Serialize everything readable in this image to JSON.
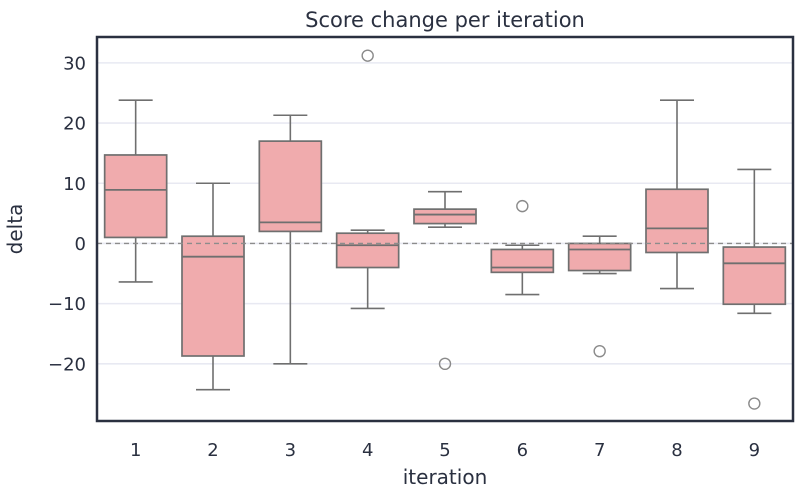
{
  "chart_data": {
    "type": "box",
    "title": "Score change per iteration",
    "xlabel": "iteration",
    "ylabel": "delta",
    "categories": [
      "1",
      "2",
      "3",
      "4",
      "5",
      "6",
      "7",
      "8",
      "9"
    ],
    "ylim": [
      -29.5,
      34.3
    ],
    "grid": "horizontal-only",
    "legend": "none",
    "yticks": {
      "values": [
        30,
        20,
        10,
        0,
        -10,
        -20
      ],
      "labels": [
        "30",
        "20",
        "10",
        "0",
        "−10",
        "−20"
      ]
    },
    "zero_line": {
      "value": 0,
      "style": "dashed"
    },
    "boxes": [
      {
        "category": "1",
        "whislo": -6.4,
        "q1": 1.0,
        "med": 8.9,
        "q3": 14.7,
        "whishi": 23.8,
        "outliers": []
      },
      {
        "category": "2",
        "whislo": -24.3,
        "q1": -18.7,
        "med": -2.2,
        "q3": 1.2,
        "whishi": 10.0,
        "outliers": []
      },
      {
        "category": "3",
        "whislo": -20.0,
        "q1": 2.0,
        "med": 3.5,
        "q3": 17.0,
        "whishi": 21.3,
        "outliers": []
      },
      {
        "category": "4",
        "whislo": -10.8,
        "q1": -4.0,
        "med": -0.3,
        "q3": 1.7,
        "whishi": 2.2,
        "outliers": [
          31.2
        ]
      },
      {
        "category": "5",
        "whislo": 2.7,
        "q1": 3.3,
        "med": 4.8,
        "q3": 5.7,
        "whishi": 8.6,
        "outliers": [
          -20.0
        ]
      },
      {
        "category": "6",
        "whislo": -8.5,
        "q1": -4.8,
        "med": -4.0,
        "q3": -1.0,
        "whishi": -0.3,
        "outliers": [
          6.2
        ]
      },
      {
        "category": "7",
        "whislo": -5.0,
        "q1": -4.5,
        "med": -1.0,
        "q3": 0.0,
        "whishi": 1.2,
        "outliers": [
          -17.9
        ]
      },
      {
        "category": "8",
        "whislo": -7.5,
        "q1": -1.5,
        "med": 2.5,
        "q3": 9.0,
        "whishi": 23.8,
        "outliers": []
      },
      {
        "category": "9",
        "whislo": -11.6,
        "q1": -10.1,
        "med": -3.3,
        "q3": -0.6,
        "whishi": 12.3,
        "outliers": [
          -26.6
        ]
      }
    ],
    "colors": {
      "box_fill": "#f0abad",
      "box_edge": "#6f6f6f",
      "whisker": "#6f6f6f",
      "median": "#6f6f6f",
      "outlier_edge": "#8a8a8a",
      "grid": "#e8e9f2",
      "zero_dash": "#8c8c8c",
      "spine": "#2a3040",
      "text": "#2a3040",
      "background": "#ffffff"
    }
  }
}
